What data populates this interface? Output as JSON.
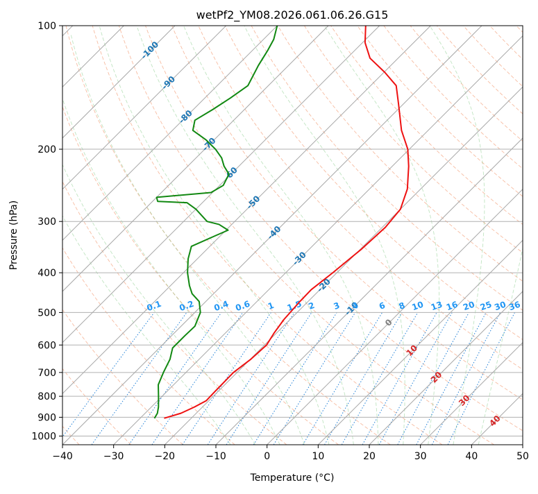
{
  "chart_data": {
    "type": "line",
    "title": "wetPf2_YM08.2026.061.06.26.G15",
    "xlabel": "Temperature (°C)",
    "ylabel": "Pressure (hPa)",
    "xlim": [
      -40,
      50
    ],
    "ylim": [
      1050,
      100
    ],
    "y_scale": "log",
    "grid": true,
    "x_ticks": [
      -40,
      -30,
      -20,
      -10,
      0,
      10,
      20,
      30,
      40,
      50
    ],
    "x_tick_labels": [
      "−40",
      "−30",
      "−20",
      "−10",
      "0",
      "10",
      "20",
      "30",
      "40",
      "50"
    ],
    "y_ticks": [
      100,
      200,
      300,
      400,
      500,
      600,
      700,
      800,
      900,
      1000
    ],
    "y_tick_labels": [
      "100",
      "200",
      "300",
      "400",
      "500",
      "600",
      "700",
      "800",
      "900",
      "1000"
    ],
    "isotherms_skewed": [
      -160,
      -150,
      -140,
      -130,
      -120,
      -110,
      -100,
      -90,
      -80,
      -70,
      -60,
      -50,
      -40,
      -30,
      -20,
      -10,
      0,
      10,
      20,
      30,
      40,
      50
    ],
    "dry_adiabats_theta_c": [
      -60,
      -50,
      -40,
      -30,
      -20,
      -10,
      0,
      10,
      20,
      30,
      40,
      50,
      60,
      70,
      80,
      90,
      100,
      110,
      120,
      130,
      140,
      150,
      160,
      170,
      180,
      190,
      200
    ],
    "moist_adiabats_c": [
      -10,
      -5,
      0,
      5,
      10,
      15,
      20,
      25,
      30,
      35,
      40
    ],
    "mixing_ratio_lines": [
      {
        "w": 0.1,
        "label": "0.1"
      },
      {
        "w": 0.2,
        "label": "0.2"
      },
      {
        "w": 0.4,
        "label": "0.4"
      },
      {
        "w": 0.6,
        "label": "0.6"
      },
      {
        "w": 1,
        "label": "1"
      },
      {
        "w": 1.5,
        "label": "1.5"
      },
      {
        "w": 2,
        "label": "2"
      },
      {
        "w": 3,
        "label": "3"
      },
      {
        "w": 4,
        "label": "4"
      },
      {
        "w": 6,
        "label": "6"
      },
      {
        "w": 8,
        "label": "8"
      },
      {
        "w": 10,
        "label": "10"
      },
      {
        "w": 13,
        "label": "13"
      },
      {
        "w": 16,
        "label": "16"
      },
      {
        "w": 20,
        "label": "20"
      },
      {
        "w": 25,
        "label": "25"
      },
      {
        "w": 30,
        "label": "30"
      },
      {
        "w": 36,
        "label": "36"
      }
    ],
    "isotherm_labels": [
      {
        "t": -100,
        "p": 115,
        "text": "-100"
      },
      {
        "t": -90,
        "p": 138,
        "text": "-90"
      },
      {
        "t": -80,
        "p": 167,
        "text": "-80"
      },
      {
        "t": -70,
        "p": 195,
        "text": "-70"
      },
      {
        "t": -60,
        "p": 230,
        "text": "-60"
      },
      {
        "t": -50,
        "p": 270,
        "text": "-50"
      },
      {
        "t": -40,
        "p": 320,
        "text": "-40"
      },
      {
        "t": -30,
        "p": 370,
        "text": "-30"
      },
      {
        "t": -20,
        "p": 430,
        "text": "-20"
      },
      {
        "t": -10,
        "p": 490,
        "text": "-10"
      },
      {
        "t": 0,
        "p": 530,
        "text": "0"
      },
      {
        "t": 10,
        "p": 620,
        "text": "10"
      },
      {
        "t": 20,
        "p": 720,
        "text": "20"
      },
      {
        "t": 30,
        "p": 820,
        "text": "30"
      },
      {
        "t": 40,
        "p": 920,
        "text": "40"
      }
    ],
    "series": [
      {
        "name": "",
        "role": "temperature",
        "color": "#ee1111",
        "points": [
          [
            905,
            -25.3
          ],
          [
            880,
            -23
          ],
          [
            850,
            -21.6
          ],
          [
            820,
            -20.5
          ],
          [
            780,
            -20.6
          ],
          [
            700,
            -20.7
          ],
          [
            650,
            -19.9
          ],
          [
            600,
            -19.6
          ],
          [
            560,
            -20.5
          ],
          [
            520,
            -21.2
          ],
          [
            470,
            -21.6
          ],
          [
            440,
            -21.7
          ],
          [
            400,
            -20.8
          ],
          [
            350,
            -19.8
          ],
          [
            310,
            -19.4
          ],
          [
            280,
            -20.0
          ],
          [
            250,
            -22.6
          ],
          [
            220,
            -26.8
          ],
          [
            200,
            -30.3
          ],
          [
            180,
            -35.2
          ],
          [
            155,
            -41.0
          ],
          [
            140,
            -45.0
          ],
          [
            130,
            -49.8
          ],
          [
            120,
            -55.5
          ],
          [
            110,
            -59.5
          ],
          [
            100,
            -62.7
          ]
        ]
      },
      {
        "name": "",
        "role": "dewpoint",
        "color": "#118811",
        "points": [
          [
            905,
            -27.2
          ],
          [
            880,
            -27.6
          ],
          [
            850,
            -28.6
          ],
          [
            800,
            -30.7
          ],
          [
            750,
            -33.0
          ],
          [
            700,
            -34.4
          ],
          [
            650,
            -35.7
          ],
          [
            610,
            -37.4
          ],
          [
            570,
            -37.4
          ],
          [
            540,
            -37.3
          ],
          [
            500,
            -38.9
          ],
          [
            470,
            -41.3
          ],
          [
            450,
            -44.2
          ],
          [
            430,
            -46.3
          ],
          [
            400,
            -49.2
          ],
          [
            370,
            -51.8
          ],
          [
            345,
            -53.6
          ],
          [
            325,
            -51.0
          ],
          [
            315,
            -49.6
          ],
          [
            305,
            -52.5
          ],
          [
            300,
            -55.4
          ],
          [
            280,
            -60.0
          ],
          [
            270,
            -63.0
          ],
          [
            268,
            -69.0
          ],
          [
            262,
            -70.0
          ],
          [
            255,
            -60.3
          ],
          [
            245,
            -59.3
          ],
          [
            230,
            -60.4
          ],
          [
            220,
            -62.9
          ],
          [
            210,
            -65.0
          ],
          [
            200,
            -67.9
          ],
          [
            190,
            -71.5
          ],
          [
            180,
            -76.0
          ],
          [
            170,
            -77.6
          ],
          [
            160,
            -76.2
          ],
          [
            150,
            -75.0
          ],
          [
            140,
            -74.0
          ],
          [
            125,
            -75.9
          ],
          [
            115,
            -77.0
          ],
          [
            108,
            -78.0
          ],
          [
            100,
            -80.0
          ]
        ]
      }
    ]
  }
}
